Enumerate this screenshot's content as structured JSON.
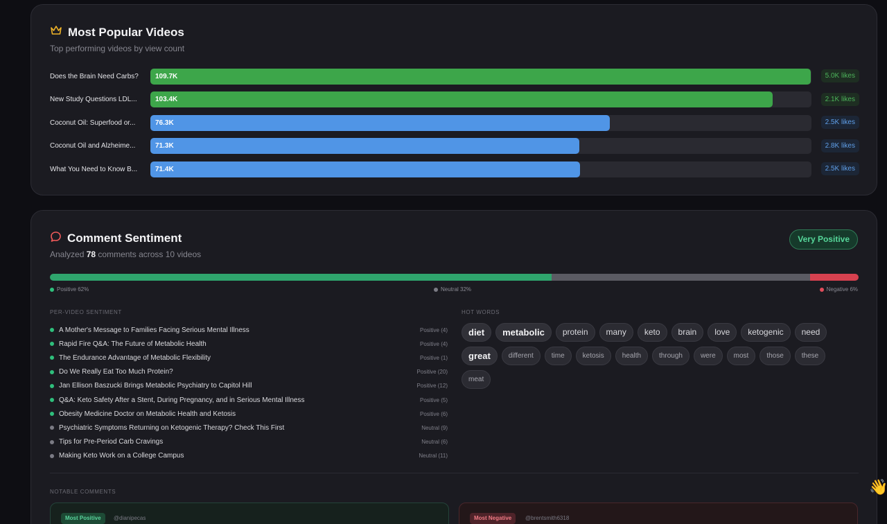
{
  "popular": {
    "title": "Most Popular Videos",
    "subtitle": "Top performing videos by view count",
    "icon": "crown-icon",
    "videos": [
      {
        "label": "Does the Brain Need Carbs?",
        "views_text": "109.7K",
        "views": 109.7,
        "likes": "5.0K likes",
        "color": "green"
      },
      {
        "label": "New Study Questions LDL...",
        "views_text": "103.4K",
        "views": 103.4,
        "likes": "2.1K likes",
        "color": "green"
      },
      {
        "label": "Coconut Oil: Superfood or...",
        "views_text": "76.3K",
        "views": 76.3,
        "likes": "2.5K likes",
        "color": "blue"
      },
      {
        "label": "Coconut Oil and Alzheime...",
        "views_text": "71.3K",
        "views": 71.3,
        "likes": "2.8K likes",
        "color": "blue"
      },
      {
        "label": "What You Need to Know B...",
        "views_text": "71.4K",
        "views": 71.4,
        "likes": "2.5K likes",
        "color": "blue"
      }
    ]
  },
  "sentiment": {
    "title": "Comment Sentiment",
    "icon": "chat-bubble-icon",
    "subtitle_prefix": "Analyzed ",
    "comment_count": "78",
    "subtitle_suffix": " comments across 10 videos",
    "overall": "Very Positive",
    "positive_pct": 62,
    "neutral_pct": 32,
    "negative_pct": 6,
    "legend_positive": "Positive 62%",
    "legend_neutral": "Neutral 32%",
    "legend_negative": "Negative 6%",
    "per_video_head": "PER-VIDEO SENTIMENT",
    "per_video": [
      {
        "title": "A Mother's Message to Families Facing Serious Mental Illness",
        "value": "Positive (4)",
        "kind": "pos"
      },
      {
        "title": "Rapid Fire Q&A: The Future of Metabolic Health",
        "value": "Positive (4)",
        "kind": "pos"
      },
      {
        "title": "The Endurance Advantage of Metabolic Flexibility",
        "value": "Positive (1)",
        "kind": "pos"
      },
      {
        "title": "Do We Really Eat Too Much Protein?",
        "value": "Positive (20)",
        "kind": "pos"
      },
      {
        "title": "Jan Ellison Baszucki Brings Metabolic Psychiatry to Capitol Hill",
        "value": "Positive (12)",
        "kind": "pos"
      },
      {
        "title": "Q&A: Keto Safety After a Stent, During Pregnancy, and in Serious Mental Illness",
        "value": "Positive (5)",
        "kind": "pos"
      },
      {
        "title": "Obesity Medicine Doctor on Metabolic Health and Ketosis",
        "value": "Positive (6)",
        "kind": "pos"
      },
      {
        "title": "Psychiatric Symptoms Returning on Ketogenic Therapy? Check This First",
        "value": "Neutral (9)",
        "kind": "neu"
      },
      {
        "title": "Tips for Pre-Period Carb Cravings",
        "value": "Neutral (6)",
        "kind": "neu"
      },
      {
        "title": "Making Keto Work on a College Campus",
        "value": "Neutral (11)",
        "kind": "neu"
      }
    ],
    "hot_words_head": "HOT WORDS",
    "hot_words": [
      {
        "word": "diet",
        "size": "xl"
      },
      {
        "word": "metabolic",
        "size": "xl"
      },
      {
        "word": "protein",
        "size": "lg"
      },
      {
        "word": "many",
        "size": "lg"
      },
      {
        "word": "keto",
        "size": "lg"
      },
      {
        "word": "brain",
        "size": "lg"
      },
      {
        "word": "love",
        "size": "lg"
      },
      {
        "word": "ketogenic",
        "size": "lg"
      },
      {
        "word": "need",
        "size": "lg"
      },
      {
        "word": "great",
        "size": "xl"
      },
      {
        "word": "different",
        "size": "sm"
      },
      {
        "word": "time",
        "size": "sm"
      },
      {
        "word": "ketosis",
        "size": "sm"
      },
      {
        "word": "health",
        "size": "sm"
      },
      {
        "word": "through",
        "size": "sm"
      },
      {
        "word": "were",
        "size": "sm"
      },
      {
        "word": "most",
        "size": "sm"
      },
      {
        "word": "those",
        "size": "sm"
      },
      {
        "word": "these",
        "size": "sm"
      },
      {
        "word": "meat",
        "size": "sm"
      }
    ],
    "notable_head": "NOTABLE COMMENTS",
    "notable_positive_tag": "Most Positive",
    "notable_positive_user": "@dianipecas",
    "notable_negative_tag": "Most Negative",
    "notable_negative_user": "@brentsmith6318"
  },
  "colors": {
    "positive": "#2fa56d",
    "neutral": "#5b5b63",
    "negative": "#d6414f",
    "bar_green": "#3da64a",
    "bar_blue": "#5095e6"
  }
}
